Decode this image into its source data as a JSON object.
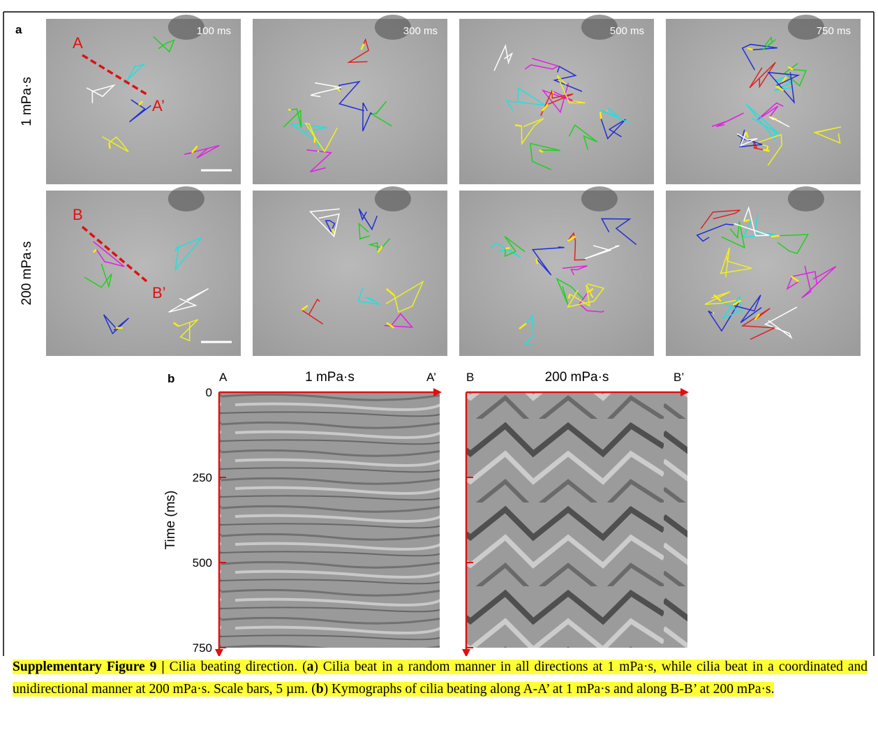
{
  "figure": {
    "panel_a": {
      "label": "a",
      "timepoints": [
        "100 ms",
        "300 ms",
        "500 ms",
        "750 ms"
      ],
      "rows": [
        {
          "name": "1 mPa·s",
          "start": "A",
          "end": "A’"
        },
        {
          "name": "200 mPa·s",
          "start": "B",
          "end": "B’"
        }
      ]
    },
    "panel_b": {
      "label": "b",
      "ylabel": "Time (ms)",
      "ylim": [
        0,
        750
      ],
      "yticks": [
        0,
        250,
        500,
        750
      ],
      "kymographs": [
        {
          "start": "A",
          "title": "1 mPa·s",
          "end": "A’"
        },
        {
          "start": "B",
          "title": "200 mPa·s",
          "end": "B’"
        }
      ]
    },
    "caption": [
      {
        "text": "Supplementary Figure 9 |",
        "bold": true
      },
      {
        "text": " Cilia beating direction. (",
        "bold": false
      },
      {
        "text": "a",
        "bold": true
      },
      {
        "text": ") Cilia beat in a random manner in all directions at 1 mPa·s, while cilia beat in a coordinated and unidirectional manner at 200 mPa·s. Scale bars, 5 µm. (",
        "bold": false
      },
      {
        "text": "b",
        "bold": true
      },
      {
        "text": ") Kymographs of cilia beating along A-A’ at 1 mPa·s and along B-B’ at 200 mPa·s.",
        "bold": false
      }
    ]
  }
}
